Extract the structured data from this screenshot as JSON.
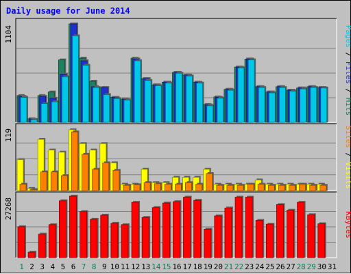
{
  "chart_data": [
    {
      "type": "bar",
      "title": "Daily usage for June 2014",
      "categories": [
        "1",
        "2",
        "3",
        "4",
        "5",
        "6",
        "7",
        "8",
        "9",
        "10",
        "11",
        "12",
        "13",
        "14",
        "15",
        "16",
        "17",
        "18",
        "19",
        "20",
        "21",
        "22",
        "23",
        "24",
        "25",
        "26",
        "27",
        "28",
        "29",
        "30",
        "31"
      ],
      "weekend_days": [
        "1",
        "7",
        "8",
        "14",
        "15",
        "21",
        "22",
        "28",
        "29"
      ],
      "ylabel": "1104",
      "ylim": [
        0,
        1104
      ],
      "series_label_parts": [
        "Pages",
        "Files",
        "Hits"
      ],
      "series_label_separator": " / ",
      "series": [
        {
          "name": "Hits",
          "color": "#1f7f5f",
          "values": [
            300,
            40,
            300,
            340,
            700,
            1104,
            720,
            460,
            390,
            280,
            260,
            720,
            490,
            420,
            450,
            560,
            530,
            450,
            200,
            285,
            370,
            620,
            710,
            400,
            340,
            400,
            360,
            385,
            400,
            390,
            0
          ]
        },
        {
          "name": "Files",
          "color": "#2030d0",
          "values": [
            290,
            35,
            290,
            270,
            540,
            1104,
            690,
            400,
            390,
            280,
            255,
            710,
            490,
            420,
            450,
            560,
            530,
            450,
            195,
            280,
            370,
            620,
            710,
            400,
            340,
            400,
            360,
            385,
            400,
            390,
            0
          ]
        },
        {
          "name": "Pages",
          "color": "#00c8e8",
          "values": [
            280,
            30,
            210,
            230,
            510,
            970,
            640,
            390,
            310,
            265,
            250,
            690,
            470,
            410,
            440,
            550,
            520,
            440,
            185,
            270,
            360,
            610,
            700,
            390,
            330,
            390,
            350,
            375,
            390,
            385,
            0
          ]
        }
      ]
    },
    {
      "type": "bar",
      "ylabel": "119",
      "ylim": [
        0,
        119
      ],
      "series_label_parts": [
        "Sites",
        "Visits"
      ],
      "series_label_separator": " / ",
      "series": [
        {
          "name": "Visits",
          "color": "#ffff00",
          "values": [
            58,
            4,
            96,
            76,
            72,
            114,
            88,
            76,
            88,
            52,
            12,
            12,
            40,
            15,
            15,
            25,
            25,
            25,
            40,
            12,
            12,
            12,
            12,
            20,
            12,
            12,
            12,
            12,
            12,
            12,
            0
          ]
        },
        {
          "name": "Sites",
          "color": "#ff8000",
          "values": [
            12,
            2,
            35,
            35,
            28,
            110,
            68,
            40,
            52,
            38,
            10,
            11,
            15,
            13,
            12,
            12,
            15,
            12,
            32,
            10,
            10,
            10,
            12,
            12,
            10,
            10,
            10,
            12,
            10,
            10,
            0
          ]
        }
      ]
    },
    {
      "type": "bar",
      "ylabel": "27268",
      "ylim": [
        0,
        27268
      ],
      "series_label_parts": [
        "KBytes"
      ],
      "series_label_separator": "",
      "series": [
        {
          "name": "KBytes",
          "color": "#ff0000",
          "values": [
            13700,
            2400,
            10400,
            14600,
            25200,
            27268,
            20400,
            17000,
            18800,
            15200,
            14600,
            24500,
            17800,
            22200,
            24200,
            24800,
            26800,
            25400,
            12600,
            18500,
            22000,
            26800,
            26800,
            16500,
            14800,
            23500,
            21000,
            24500,
            19000,
            15000,
            0
          ]
        }
      ]
    }
  ]
}
